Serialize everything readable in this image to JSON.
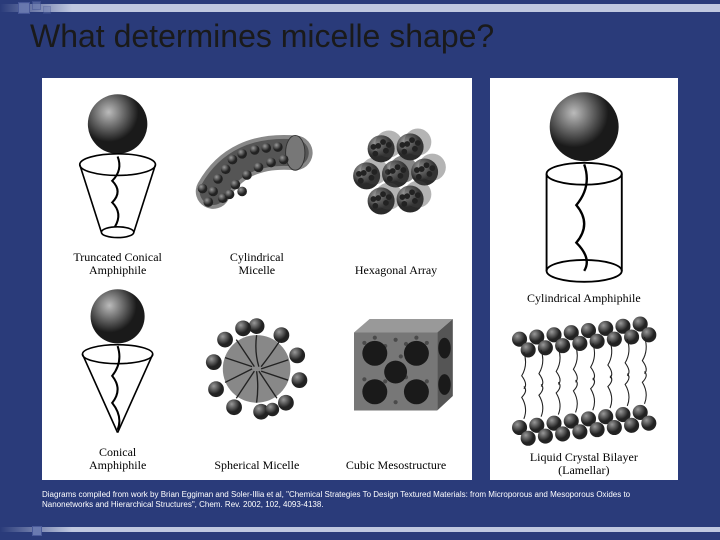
{
  "slide": {
    "title": "What determines micelle shape?",
    "citation": "Diagrams compiled from work by Brian Eggiman and Soler-Illia et al, \"Chemical Strategies To Design Textured Materials: from Microporous and Mesoporous Oxides to Nanonetworks and Hierarchical Structures\", Chem. Rev. 2002, 102, 4093-4138.",
    "background_color": "#2a3b7a",
    "panel_bg": "#ffffff",
    "text_color": "#000000",
    "title_color": "#1a1a1a",
    "title_fontsize": 32,
    "caption_font": "Times New Roman",
    "caption_fontsize": 12
  },
  "left_panels": [
    {
      "id": "truncated-conical",
      "label": "Truncated Conical\nAmphiphile"
    },
    {
      "id": "cylindrical-micelle",
      "label": "Cylindrical\nMicelle"
    },
    {
      "id": "hexagonal-array",
      "label": "Hexagonal Array"
    },
    {
      "id": "conical-amphiphile",
      "label": "Conical\nAmphiphile"
    },
    {
      "id": "spherical-micelle",
      "label": "Spherical Micelle"
    },
    {
      "id": "cubic-mesostructure",
      "label": "Cubic Mesostructure"
    }
  ],
  "right_panels": [
    {
      "id": "cylindrical-amphiphile",
      "label": "Cylindrical Amphiphile"
    },
    {
      "id": "lamellar",
      "label": "Liquid Crystal Bilayer\n(Lamellar)"
    }
  ],
  "diagram_style": {
    "sphere_fill": "#3a3a3a",
    "sphere_highlight": "#b0b0b0",
    "cone_stroke": "#000000",
    "cone_fill": "none",
    "particle_fill": "#555555",
    "particle_dark": "#222222",
    "tail_stroke": "#222222",
    "line_width": 1.2
  }
}
